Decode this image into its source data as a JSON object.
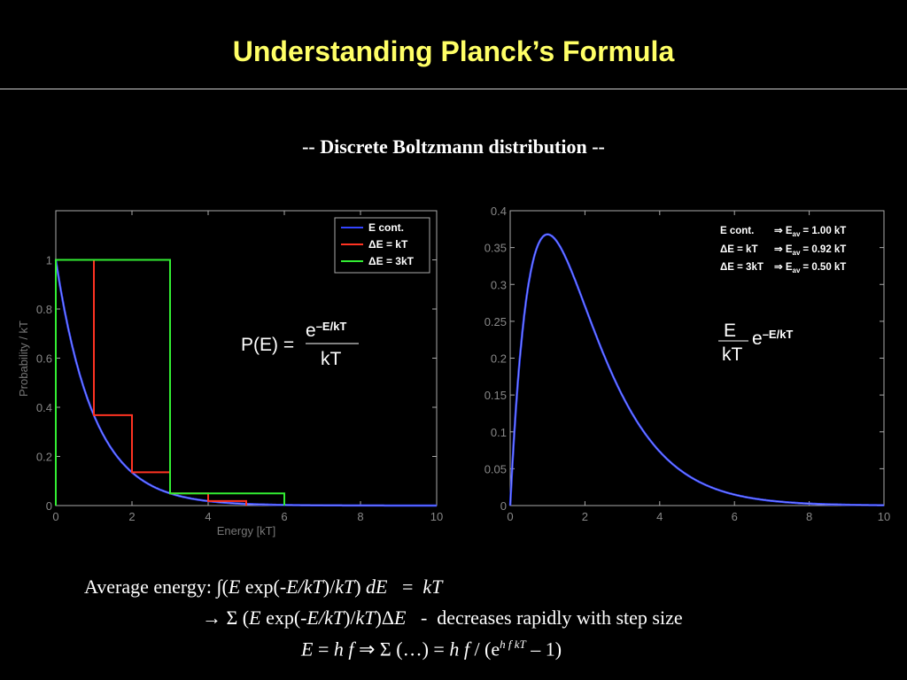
{
  "title": "Understanding Planck’s Formula",
  "subtitle": "-- Discrete Boltzmann distribution --",
  "chart_data": [
    {
      "type": "line",
      "ylabel": "Probability / kT",
      "xlabel": "Energy [kT]",
      "xlim": [
        0,
        10
      ],
      "ylim": [
        0,
        1.2
      ],
      "xticks": [
        "0",
        "2",
        "4",
        "6",
        "8",
        "10"
      ],
      "yticks": [
        "0",
        "0.2",
        "0.4",
        "0.6",
        "0.8",
        "1"
      ],
      "legend_position": "top-right",
      "formula": {
        "lhs": "P(E) =",
        "num": "e",
        "exp": "–E/kT",
        "den": "kT"
      },
      "series": [
        {
          "name": "E cont.",
          "color": "#3344ff",
          "kind": "curve",
          "x_end": 10
        },
        {
          "name": "ΔE = kT",
          "color": "#ff3322",
          "kind": "steps",
          "dE": 1,
          "x_end": 5
        },
        {
          "name": "ΔE = 3kT",
          "color": "#33ee33",
          "kind": "steps",
          "dE": 3,
          "x_end": 6
        }
      ]
    },
    {
      "type": "line",
      "xlim": [
        0,
        10
      ],
      "ylim": [
        0,
        0.4
      ],
      "xticks": [
        "0",
        "2",
        "4",
        "6",
        "8",
        "10"
      ],
      "yticks": [
        "0",
        "0.05",
        "0.1",
        "0.15",
        "0.2",
        "0.25",
        "0.3",
        "0.35",
        "0.4"
      ],
      "formula": {
        "num": "E",
        "den": "kT",
        "base": "e",
        "exp": "–E/kT"
      },
      "annotations": [
        {
          "label": "E cont.",
          "sub": "av",
          "value": "= 1.00 kT"
        },
        {
          "label": "ΔE = kT",
          "sub": "av",
          "value": "= 0.92 kT"
        },
        {
          "label": "ΔE = 3kT",
          "sub": "av",
          "value": "= 0.50 kT"
        }
      ],
      "series": [
        {
          "name": "E cont.",
          "color": "#3344ff",
          "kind": "xexp"
        }
      ]
    }
  ],
  "bottom": {
    "line1_prefix": "Average energy: ∫(",
    "line1_E": "E",
    "line1_mid": " exp(-",
    "line1_ekt": "E/kT",
    "line1_a": ")/",
    "line1_kt": "kT",
    "line1_b": ") ",
    "line1_dE": "dE",
    "line1_eq": "   =  ",
    "line1_rhs": "kT",
    "line2_prefix": "→ Σ (",
    "line2_E": "E",
    "line2_mid": " exp(-",
    "line2_ekt": "E/kT",
    "line2_a": ")/",
    "line2_kt": "kT",
    "line2_b": ")Δ",
    "line2_dE": "E",
    "line2_rest": "   -  decreases rapidly with step size",
    "line3_E": "E",
    "line3_eq": " = ",
    "line3_hf": "h f",
    "line3_imp": " ⇒ Σ (…) = ",
    "line3_hf2": "h f",
    "line3_div": " / (e",
    "line3_sup": "h f kT",
    "line3_end": " – 1)"
  }
}
